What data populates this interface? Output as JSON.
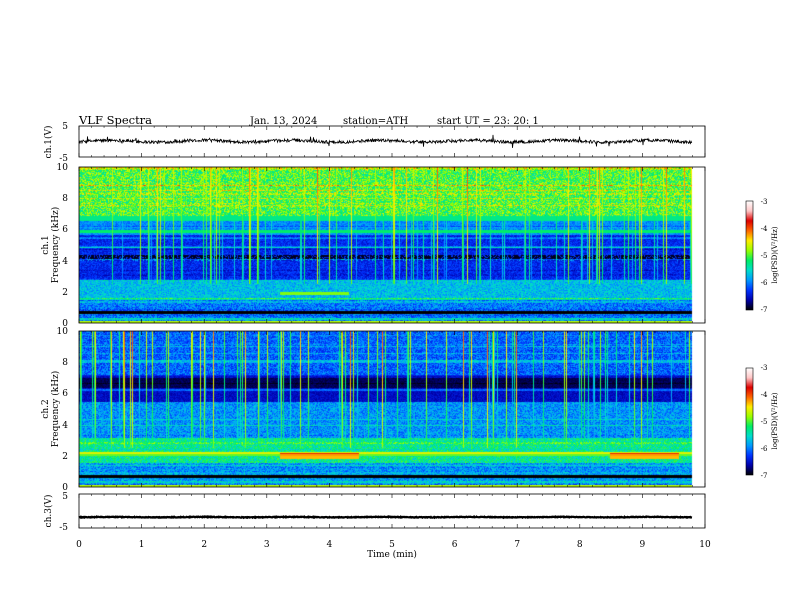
{
  "header": {
    "title": "VLF  Spectra",
    "date": "Jan.  13,  2024",
    "station": "station=ATH",
    "start_ut": "start  UT  =    23: 20: 1"
  },
  "colors": {
    "waveform": "#000000",
    "colormap": [
      "#000000",
      "#0000aa",
      "#0033ff",
      "#0099ff",
      "#00ddcc",
      "#00ee66",
      "#99ff00",
      "#ffee00",
      "#ff6600",
      "#dd0000",
      "#ffc8c8",
      "#ffffff"
    ]
  },
  "chart_data": [
    {
      "type": "line",
      "panel": "ch1-waveform",
      "ylabel": "ch.1(V)",
      "yticks": [
        "5",
        "-5"
      ],
      "ylim": [
        -5,
        5
      ],
      "xlim": [
        0,
        10
      ],
      "series": [
        {
          "x_range": [
            0,
            9.8
          ],
          "mean": 0.1,
          "noise_amplitude": 1.0
        }
      ]
    },
    {
      "type": "heatmap",
      "panel": "ch1-spectrogram",
      "ylabel": "ch.1\nFrequency (kHz)",
      "yticks": [
        "0",
        "2",
        "4",
        "6",
        "8",
        "10"
      ],
      "ylim": [
        0,
        10
      ],
      "xlim": [
        0,
        10
      ],
      "colorbar": {
        "label": "log(PSD)(V²/Hz)",
        "ticks": [
          "-3",
          "-4",
          "-5",
          "-6",
          "-7"
        ],
        "range": [
          -7,
          -3
        ]
      }
    },
    {
      "type": "heatmap",
      "panel": "ch2-spectrogram",
      "ylabel": "ch.2\nFrequency (kHz)",
      "yticks": [
        "0",
        "2",
        "4",
        "6",
        "8",
        "10"
      ],
      "ylim": [
        0,
        10
      ],
      "xlim": [
        0,
        10
      ],
      "colorbar": {
        "label": "log(PSD)(V²/Hz)",
        "ticks": [
          "-3",
          "-4",
          "-5",
          "-6",
          "-7"
        ],
        "range": [
          -7,
          -3
        ]
      }
    },
    {
      "type": "line",
      "panel": "ch3-waveform",
      "ylabel": "ch.3(V)",
      "yticks": [
        "5",
        "-5"
      ],
      "ylim": [
        -5,
        5
      ],
      "xlim": [
        0,
        10
      ],
      "series": [
        {
          "x_range": [
            0,
            9.8
          ],
          "mean": -1.8,
          "noise_amplitude": 0.2
        }
      ]
    }
  ],
  "x_axis": {
    "label": "Time  (min)",
    "ticks": [
      "0",
      "1",
      "2",
      "3",
      "4",
      "5",
      "6",
      "7",
      "8",
      "9",
      "10"
    ]
  }
}
